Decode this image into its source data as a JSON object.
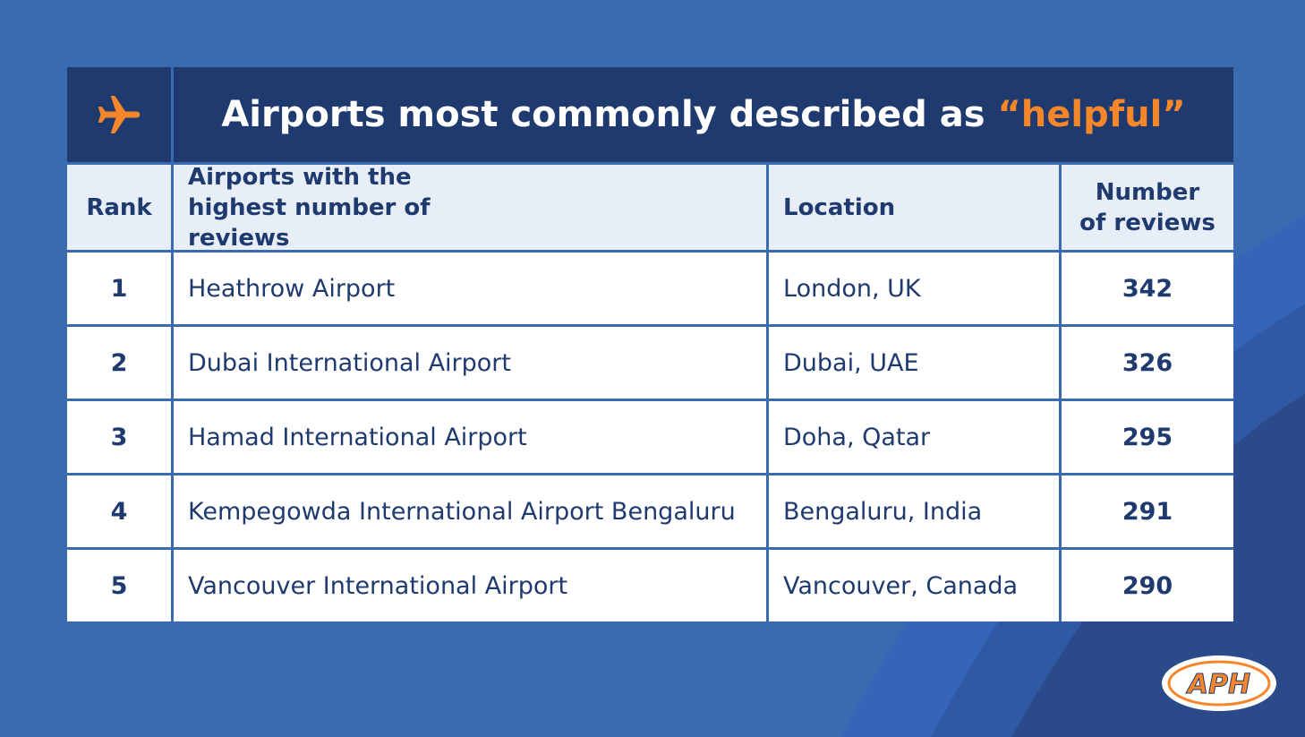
{
  "title": {
    "text": "Airports most commonly described as",
    "highlight": "“helpful”"
  },
  "table": {
    "headers": [
      "Rank",
      "Airports with the highest number of reviews",
      "Location",
      "Number of reviews"
    ],
    "rows": [
      [
        1,
        "Heathrow Airport",
        "London, UK",
        342
      ],
      [
        2,
        "Dubai International Airport",
        "Dubai, UAE",
        326
      ],
      [
        3,
        "Hamad International Airport",
        "Doha, Qatar",
        295
      ],
      [
        4,
        "Kempegowda International Airport Bengaluru",
        "Bengaluru, India",
        291
      ],
      [
        5,
        "Vancouver International Airport",
        "Vancouver, Canada",
        290
      ]
    ]
  },
  "logo": "APH"
}
